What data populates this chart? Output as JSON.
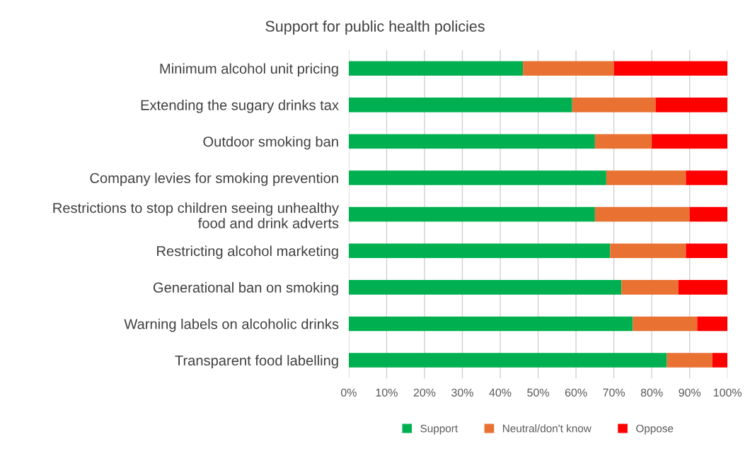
{
  "chart_data": {
    "type": "bar",
    "orientation": "horizontal",
    "stacked": true,
    "title": "Support for public health policies",
    "categories": [
      "Minimum alcohol unit pricing",
      "Extending the sugary drinks tax",
      "Outdoor smoking ban",
      "Company levies for smoking prevention",
      "Restrictions to stop children seeing unhealthy\nfood and drink adverts",
      "Restricting alcohol marketing",
      "Generational ban on smoking",
      "Warning labels on alcoholic drinks",
      "Transparent food labelling"
    ],
    "series": [
      {
        "name": "Support",
        "color": "#00b050",
        "values": [
          46,
          59,
          65,
          68,
          65,
          69,
          72,
          75,
          84
        ]
      },
      {
        "name": "Neutral/don't know",
        "color": "#e97132",
        "values": [
          24,
          22,
          15,
          21,
          25,
          20,
          15,
          17,
          12
        ]
      },
      {
        "name": "Oppose",
        "color": "#ff0000",
        "values": [
          30,
          19,
          20,
          11,
          10,
          11,
          13,
          8,
          4
        ]
      }
    ],
    "xlim": [
      0,
      100
    ],
    "xticks": [
      {
        "value": 0,
        "label": "0%"
      },
      {
        "value": 10,
        "label": "10%"
      },
      {
        "value": 20,
        "label": "20%"
      },
      {
        "value": 30,
        "label": "30%"
      },
      {
        "value": 40,
        "label": "40%"
      },
      {
        "value": 50,
        "label": "50%"
      },
      {
        "value": 60,
        "label": "60%"
      },
      {
        "value": 70,
        "label": "70%"
      },
      {
        "value": 80,
        "label": "80%"
      },
      {
        "value": 90,
        "label": "90%"
      },
      {
        "value": 100,
        "label": "100%"
      }
    ],
    "grid": "x",
    "legend": "bottom"
  }
}
